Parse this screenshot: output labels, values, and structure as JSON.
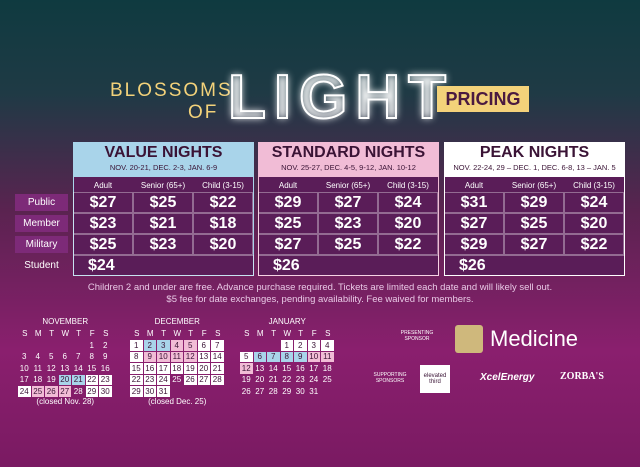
{
  "header": {
    "line1": "BLOSSOMS",
    "line2": "OF",
    "big": "LIGHT",
    "badge": "PRICING"
  },
  "row_labels": [
    "Public",
    "Member",
    "Military",
    "Student"
  ],
  "tiers": [
    {
      "name": "VALUE NIGHTS",
      "dates": "NOV. 20-21, DEC. 2-3, JAN. 6-9",
      "color": "#a9d4ea",
      "columns": [
        "Adult",
        "Senior (65+)",
        "Child (3-15)"
      ],
      "rows": [
        [
          "$27",
          "$25",
          "$22"
        ],
        [
          "$23",
          "$21",
          "$18"
        ],
        [
          "$25",
          "$23",
          "$20"
        ],
        [
          "$24"
        ]
      ]
    },
    {
      "name": "STANDARD NIGHTS",
      "dates": "NOV. 25-27, DEC. 4-5, 9-12, JAN. 10-12",
      "color": "#f1bcd6",
      "columns": [
        "Adult",
        "Senior (65+)",
        "Child (3-15)"
      ],
      "rows": [
        [
          "$29",
          "$27",
          "$24"
        ],
        [
          "$25",
          "$23",
          "$20"
        ],
        [
          "$27",
          "$25",
          "$22"
        ],
        [
          "$26"
        ]
      ]
    },
    {
      "name": "PEAK NIGHTS",
      "dates": "NOV. 22-24, 29 – DEC. 1, DEC. 6-8, 13 – JAN. 5",
      "color": "#ffffff",
      "columns": [
        "Adult",
        "Senior (65+)",
        "Child (3-15)"
      ],
      "rows": [
        [
          "$31",
          "$29",
          "$24"
        ],
        [
          "$27",
          "$25",
          "$20"
        ],
        [
          "$29",
          "$27",
          "$22"
        ],
        [
          "$26"
        ]
      ]
    }
  ],
  "notes": [
    "Children 2 and under are free. Advance purchase required. Tickets are limited each date and will likely sell out.",
    "$5 fee for date exchanges, pending availability. Fee waived for members."
  ],
  "calendars": [
    {
      "month": "NOVEMBER",
      "weekdays": [
        "S",
        "M",
        "T",
        "W",
        "T",
        "F",
        "S"
      ],
      "weeks": [
        [
          null,
          null,
          null,
          null,
          null,
          1,
          2
        ],
        [
          3,
          4,
          5,
          6,
          7,
          8,
          9
        ],
        [
          10,
          11,
          12,
          13,
          14,
          15,
          16
        ],
        [
          17,
          18,
          19,
          20,
          21,
          22,
          23
        ],
        [
          24,
          25,
          26,
          27,
          28,
          29,
          30
        ]
      ],
      "fills": [
        [
          null,
          null,
          null,
          null,
          null,
          null,
          null
        ],
        [
          null,
          null,
          null,
          null,
          null,
          null,
          null
        ],
        [
          null,
          null,
          null,
          null,
          null,
          null,
          null
        ],
        [
          null,
          null,
          null,
          "#a9d4ea",
          "#a9d4ea",
          "#ffffff",
          "#ffffff"
        ],
        [
          "#ffffff",
          "#f1bcd6",
          "#f1bcd6",
          "#f1bcd6",
          null,
          "#ffffff",
          "#ffffff"
        ]
      ],
      "note": "(closed Nov. 28)"
    },
    {
      "month": "DECEMBER",
      "weekdays": [
        "S",
        "M",
        "T",
        "W",
        "T",
        "F",
        "S"
      ],
      "weeks": [
        [
          1,
          2,
          3,
          4,
          5,
          6,
          7
        ],
        [
          8,
          9,
          10,
          11,
          12,
          13,
          14
        ],
        [
          15,
          16,
          17,
          18,
          19,
          20,
          21
        ],
        [
          22,
          23,
          24,
          25,
          26,
          27,
          28
        ],
        [
          29,
          30,
          31,
          null,
          null,
          null,
          null
        ]
      ],
      "fills": [
        [
          "#ffffff",
          "#a9d4ea",
          "#a9d4ea",
          "#f1bcd6",
          "#f1bcd6",
          "#ffffff",
          "#ffffff"
        ],
        [
          "#ffffff",
          "#f1bcd6",
          "#f1bcd6",
          "#f1bcd6",
          "#f1bcd6",
          "#ffffff",
          "#ffffff"
        ],
        [
          "#ffffff",
          "#ffffff",
          "#ffffff",
          "#ffffff",
          "#ffffff",
          "#ffffff",
          "#ffffff"
        ],
        [
          "#ffffff",
          "#ffffff",
          "#ffffff",
          null,
          "#ffffff",
          "#ffffff",
          "#ffffff"
        ],
        [
          "#ffffff",
          "#ffffff",
          "#ffffff",
          null,
          null,
          null,
          null
        ]
      ],
      "note": "(closed Dec. 25)"
    },
    {
      "month": "JANUARY",
      "weekdays": [
        "S",
        "M",
        "T",
        "W",
        "T",
        "F",
        "S"
      ],
      "weeks": [
        [
          null,
          null,
          null,
          1,
          2,
          3,
          4
        ],
        [
          5,
          6,
          7,
          8,
          9,
          10,
          11
        ],
        [
          12,
          13,
          14,
          15,
          16,
          17,
          18
        ],
        [
          19,
          20,
          21,
          22,
          23,
          24,
          25
        ],
        [
          26,
          27,
          28,
          29,
          30,
          31,
          null
        ]
      ],
      "fills": [
        [
          null,
          null,
          null,
          "#ffffff",
          "#ffffff",
          "#ffffff",
          "#ffffff"
        ],
        [
          "#ffffff",
          "#a9d4ea",
          "#a9d4ea",
          "#a9d4ea",
          "#a9d4ea",
          "#f1bcd6",
          "#f1bcd6"
        ],
        [
          "#f1bcd6",
          null,
          null,
          null,
          null,
          null,
          null
        ],
        [
          null,
          null,
          null,
          null,
          null,
          null,
          null
        ],
        [
          null,
          null,
          null,
          null,
          null,
          null,
          null
        ]
      ]
    }
  ],
  "sponsors": {
    "presenting_label": "PRESENTING SPONSOR",
    "presenting": "Medicine",
    "supporting_label": "SUPPORTING SPONSORS",
    "supporting": [
      "elevated third",
      "XcelEnergy",
      "ZORBA'S"
    ]
  }
}
